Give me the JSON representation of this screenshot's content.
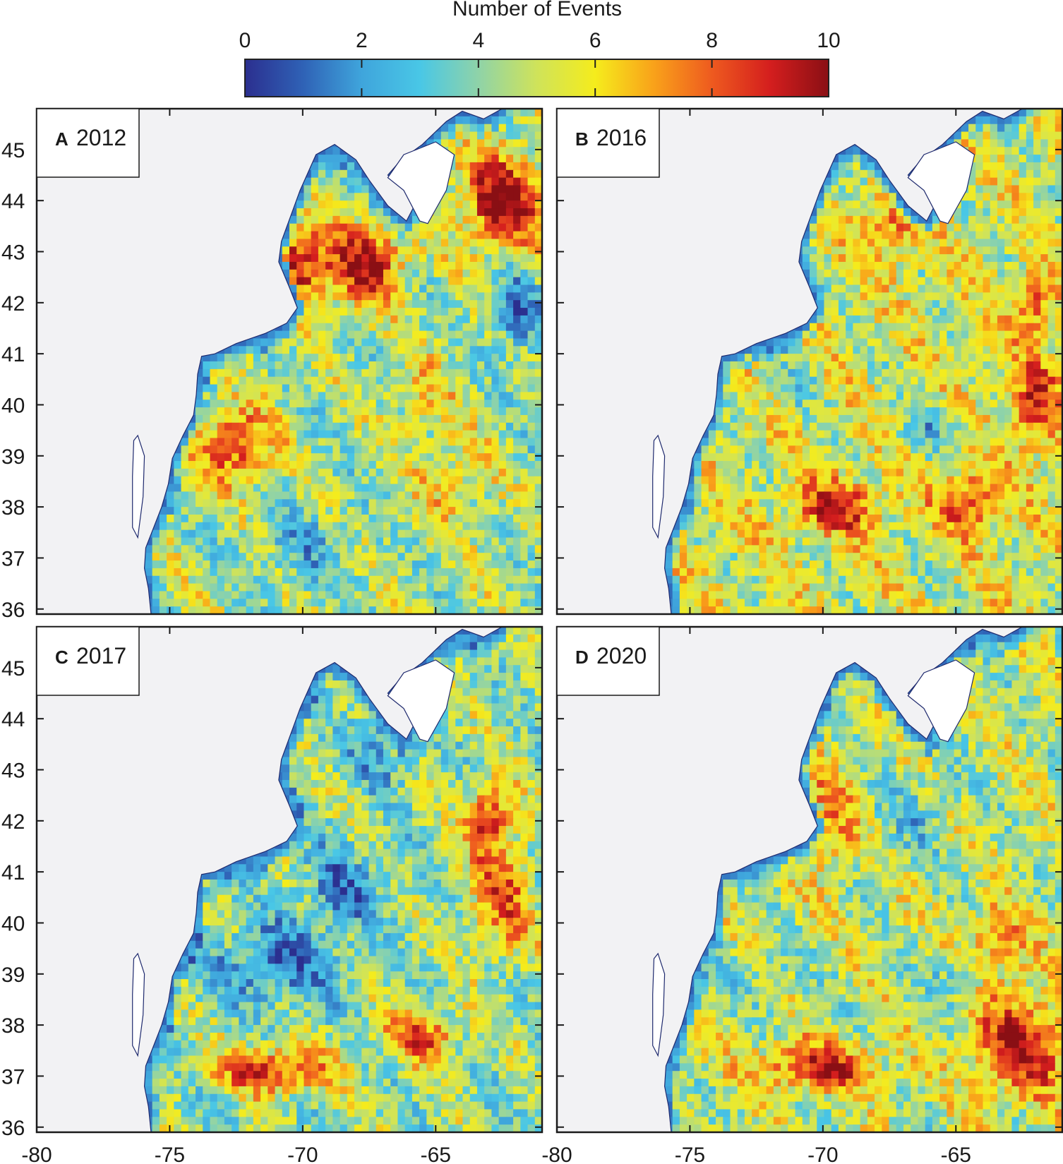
{
  "chart_data": {
    "type": "heatmap",
    "colorbar": {
      "label": "Number of Events",
      "ticks": [
        0,
        2,
        4,
        6,
        8,
        10
      ],
      "range": [
        0,
        10
      ],
      "colormap": [
        "#2b2f8f",
        "#2f62b6",
        "#3fa5dc",
        "#49c7e6",
        "#8fd3a8",
        "#cfe35a",
        "#f5ec1c",
        "#f9a21a",
        "#ee5a1f",
        "#d41e1e",
        "#8a0f14"
      ]
    },
    "x_ticks": [
      -80,
      -75,
      -70,
      -65
    ],
    "y_ticks": [
      36,
      37,
      38,
      39,
      40,
      41,
      42,
      43,
      44,
      45
    ],
    "xlim": [
      -80,
      -61
    ],
    "ylim": [
      35.9,
      45.8
    ],
    "land_color": "#f2f2f4",
    "panels": [
      {
        "letter": "A",
        "year": "2012"
      },
      {
        "letter": "B",
        "year": "2016"
      },
      {
        "letter": "C",
        "year": "2017"
      },
      {
        "letter": "D",
        "year": "2020"
      }
    ]
  }
}
